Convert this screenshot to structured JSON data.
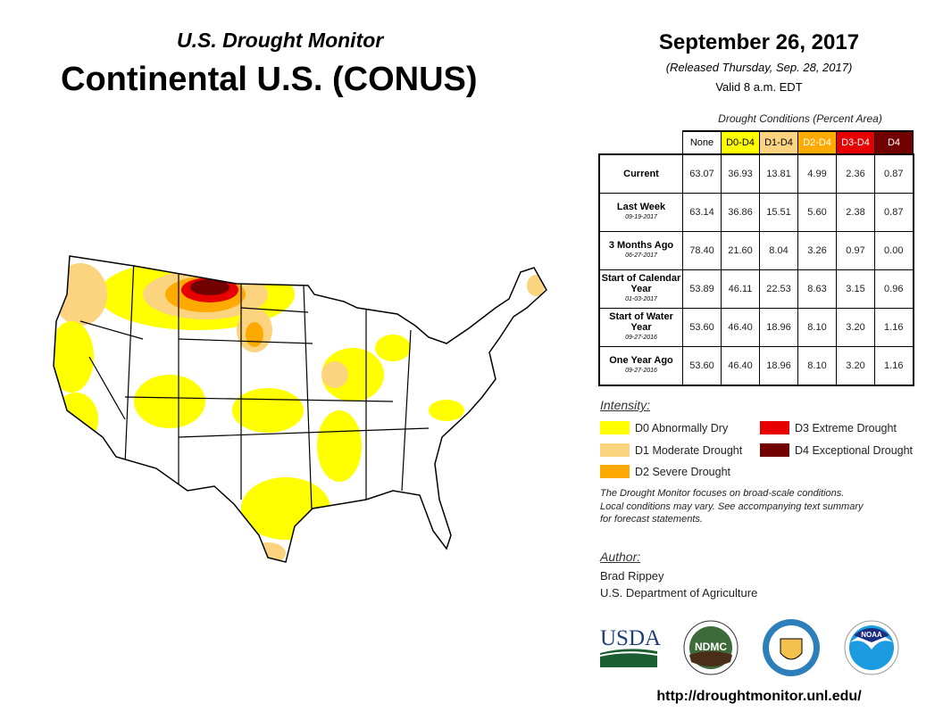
{
  "header": {
    "subtitle": "U.S. Drought Monitor",
    "title": "Continental U.S. (CONUS)",
    "date": "September 26, 2017",
    "released": "(Released Thursday, Sep. 28, 2017)",
    "valid": "Valid 8 a.m. EDT"
  },
  "table": {
    "caption": "Drought Conditions (Percent Area)",
    "columns": [
      {
        "label": "None",
        "color": "#ffffff",
        "text": "#000000"
      },
      {
        "label": "D0-D4",
        "color": "#ffff00",
        "text": "#000000"
      },
      {
        "label": "D1-D4",
        "color": "#fcd37f",
        "text": "#000000"
      },
      {
        "label": "D2-D4",
        "color": "#ffaa00",
        "text": "#ffffff"
      },
      {
        "label": "D3-D4",
        "color": "#e60000",
        "text": "#ffffff"
      },
      {
        "label": "D4",
        "color": "#730000",
        "text": "#ffffff"
      }
    ],
    "rows": [
      {
        "label": "Current",
        "date": "",
        "values": [
          "63.07",
          "36.93",
          "13.81",
          "4.99",
          "2.36",
          "0.87"
        ]
      },
      {
        "label": "Last Week",
        "date": "09-19-2017",
        "values": [
          "63.14",
          "36.86",
          "15.51",
          "5.60",
          "2.38",
          "0.87"
        ]
      },
      {
        "label": "3 Months Ago",
        "date": "06-27-2017",
        "values": [
          "78.40",
          "21.60",
          "8.04",
          "3.26",
          "0.97",
          "0.00"
        ]
      },
      {
        "label": "Start of Calendar Year",
        "date": "01-03-2017",
        "values": [
          "53.89",
          "46.11",
          "22.53",
          "8.63",
          "3.15",
          "0.96"
        ]
      },
      {
        "label": "Start of Water Year",
        "date": "09-27-2016",
        "values": [
          "53.60",
          "46.40",
          "18.96",
          "8.10",
          "3.20",
          "1.16"
        ]
      },
      {
        "label": "One Year Ago",
        "date": "09-27-2016",
        "values": [
          "53.60",
          "46.40",
          "18.96",
          "8.10",
          "3.20",
          "1.16"
        ]
      }
    ]
  },
  "legend": {
    "title": "Intensity:",
    "items": [
      {
        "label": "D0 Abnormally Dry",
        "color": "#ffff00"
      },
      {
        "label": "D1 Moderate Drought",
        "color": "#fcd37f"
      },
      {
        "label": "D2 Severe Drought",
        "color": "#ffaa00"
      },
      {
        "label": "D3 Extreme Drought",
        "color": "#e60000"
      },
      {
        "label": "D4 Exceptional Drought",
        "color": "#730000"
      }
    ]
  },
  "note": [
    "The Drought Monitor focuses on broad-scale conditions.",
    "Local conditions may vary. See accompanying text summary",
    "for forecast statements."
  ],
  "author": {
    "label": "Author:",
    "name": "Brad Rippey",
    "org": "U.S. Department of Agriculture"
  },
  "logos": {
    "usda": "USDA",
    "ndmc": "NDMC",
    "noaa": "NOAA"
  },
  "url": "http://droughtmonitor.unl.edu/"
}
